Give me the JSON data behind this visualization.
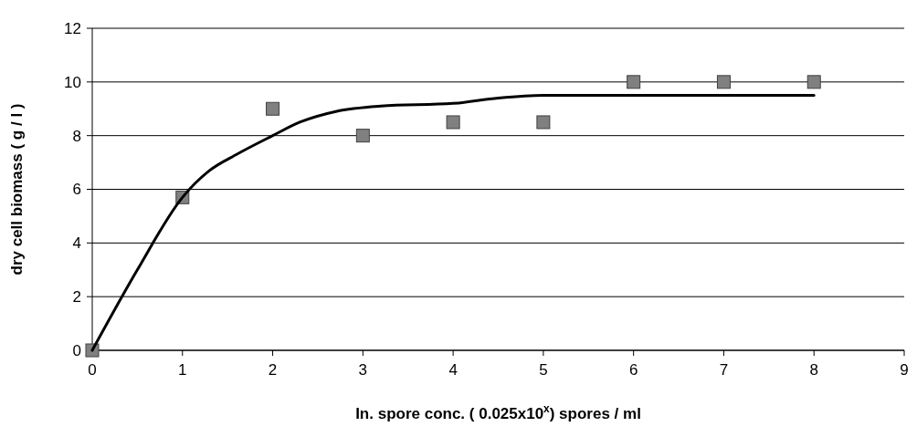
{
  "chart_data": {
    "type": "scatter",
    "xlabel": "In. spore conc. ( 0.025x10$^{x}$) spores / ml",
    "ylabel": "dry cell biomass ( g / l )",
    "xlim": [
      0,
      9
    ],
    "xticks": [
      0,
      1,
      2,
      3,
      4,
      5,
      6,
      7,
      8,
      9
    ],
    "ylim": [
      0,
      12
    ],
    "yticks": [
      0,
      2,
      4,
      6,
      8,
      10,
      12
    ],
    "grid": "y",
    "series": [
      {
        "marker": "square",
        "color": "#808080",
        "x": [
          0,
          1,
          2,
          3,
          4,
          5,
          6,
          7,
          8
        ],
        "values": [
          0,
          5.7,
          9,
          8,
          8.5,
          8.5,
          10,
          10,
          10
        ]
      },
      {
        "type": "line",
        "marker": "none",
        "line_style": "solid",
        "color": "#000000",
        "x": [
          0,
          0.5,
          1,
          1.3,
          1.6,
          2,
          2.3,
          2.7,
          3.2,
          4,
          4.5,
          5,
          6,
          7,
          8
        ],
        "values": [
          0,
          3,
          5.7,
          6.7,
          7.3,
          8,
          8.5,
          8.9,
          9.1,
          9.2,
          9.4,
          9.5,
          9.5,
          9.5,
          9.5
        ]
      }
    ]
  }
}
